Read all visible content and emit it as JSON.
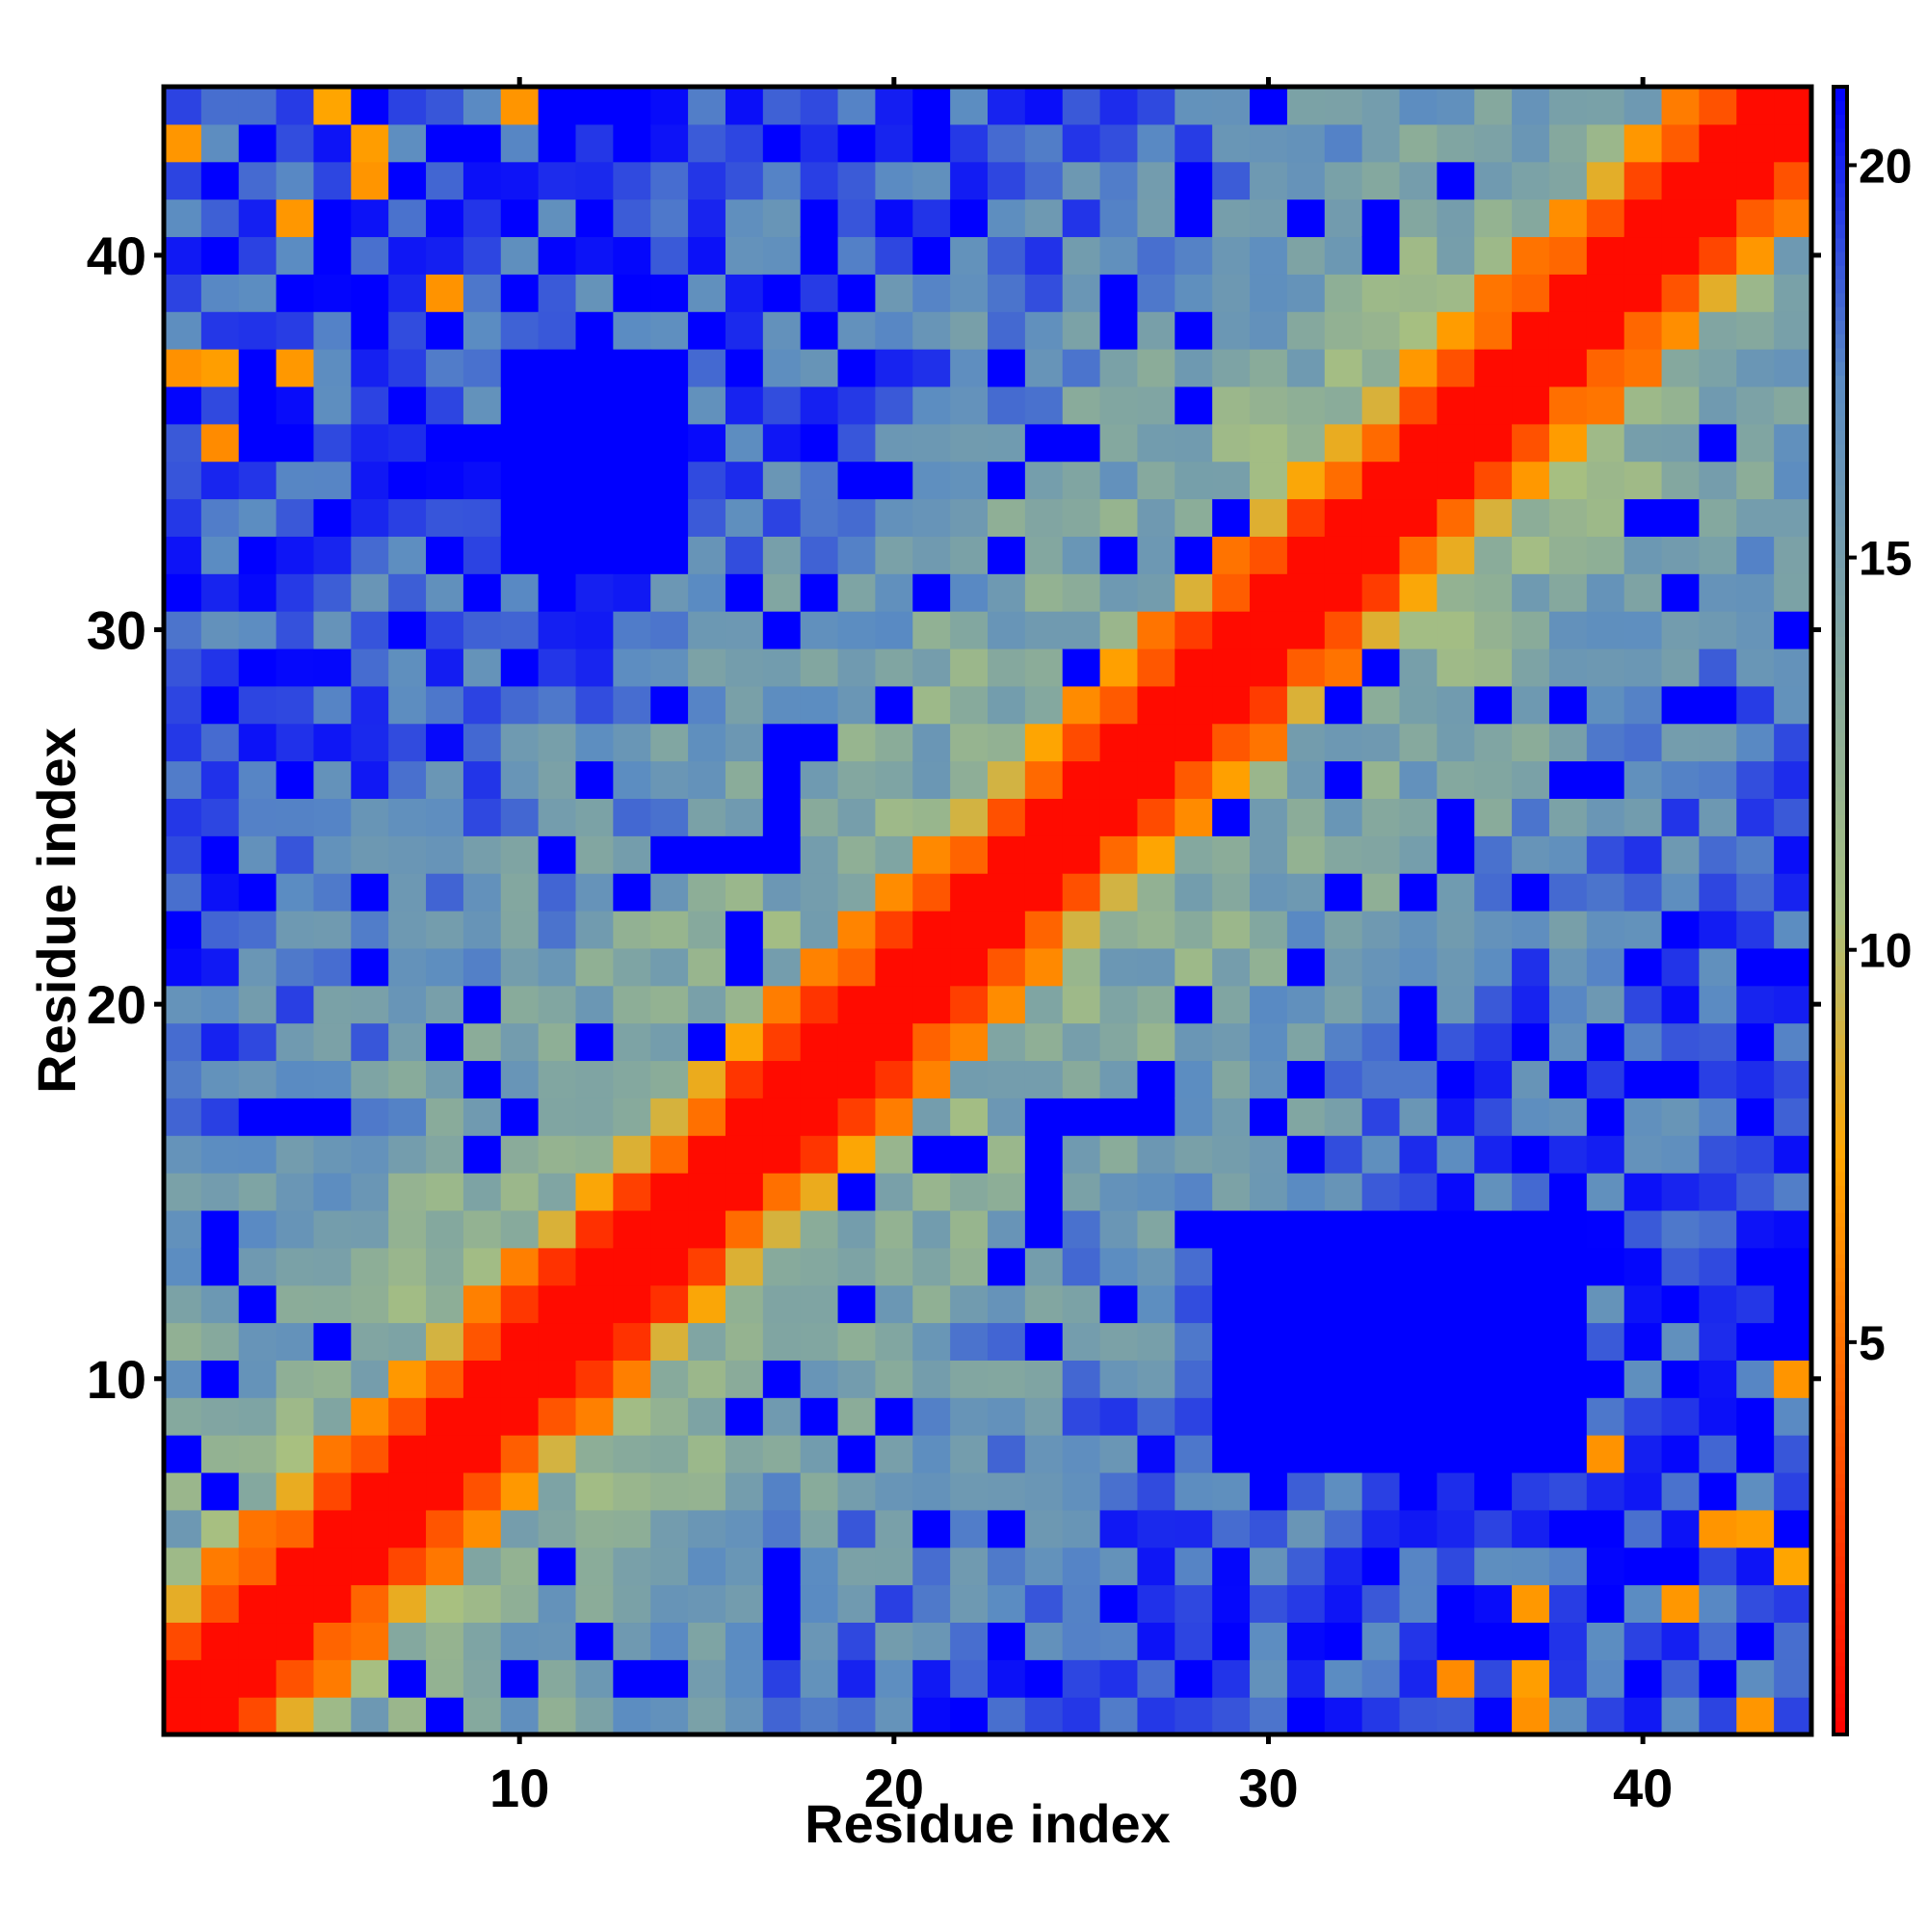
{
  "chart_data": {
    "type": "heatmap",
    "title": "",
    "xlabel": "Residue index",
    "ylabel": "Residue index",
    "n": 44,
    "xlim": [
      0.5,
      44.5
    ],
    "ylim": [
      0.5,
      44.5
    ],
    "x_ticks": [
      10,
      20,
      30,
      40
    ],
    "y_ticks": [
      10,
      20,
      30,
      40
    ],
    "x_tick_labels": [
      "10",
      "20",
      "30",
      "40"
    ],
    "y_tick_labels": [
      "10",
      "20",
      "30",
      "40"
    ],
    "colorbar": {
      "range": [
        0,
        21
      ],
      "ticks": [
        5,
        10,
        15,
        20
      ],
      "tick_labels": [
        "5",
        "10",
        "15",
        "20"
      ],
      "colors": [
        "#ff0000",
        "#ff5a00",
        "#ffa500",
        "#a8c080",
        "#5b8cc2",
        "#0000ff"
      ],
      "color_stops": [
        0,
        0.19,
        0.35,
        0.5,
        0.82,
        1.0
      ]
    },
    "grid": false,
    "matrix_description": "symmetric residue distance map; diagonal ~0",
    "special_blocks": [
      {
        "x": [
          10,
          14
        ],
        "y": [
          32,
          37
        ],
        "value": 21
      },
      {
        "x": [
          29,
          38
        ],
        "y": [
          8,
          14
        ],
        "value": 21
      }
    ],
    "colors": {
      "near": "#ff0000",
      "close": "#ffa500",
      "mid": "#a8c080",
      "far": "#5b8cc2",
      "very_far": "#0000ff"
    }
  }
}
